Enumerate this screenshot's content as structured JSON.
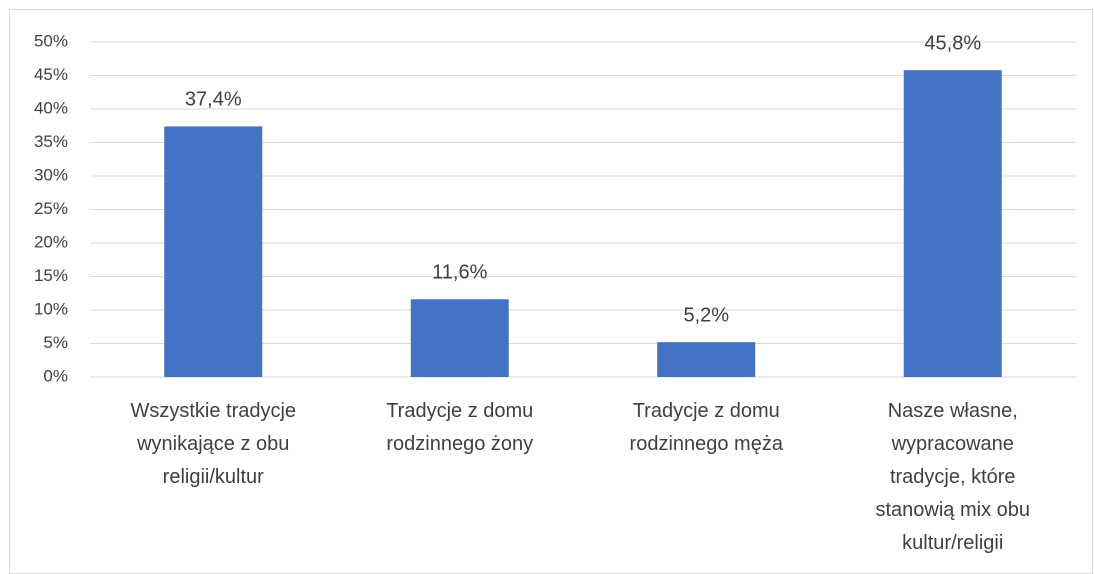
{
  "chart_data": {
    "type": "bar",
    "categories": [
      "Wszystkie tradycje wynikające z obu religii/kultur",
      "Tradycje z domu rodzinnego żony",
      "Tradycje z domu rodzinnego męża",
      "Nasze własne, wypracowane tradycje, które stanowią mix obu kultur/religii"
    ],
    "values": [
      37.4,
      11.6,
      5.2,
      45.8
    ],
    "value_labels": [
      "37,4%",
      "11,6%",
      "5,2%",
      "45,8%"
    ],
    "color": "#4472c4",
    "ylim": [
      0,
      50
    ],
    "yticks": [
      {
        "value": 0,
        "label": "0%"
      },
      {
        "value": 5,
        "label": "5%"
      },
      {
        "value": 10,
        "label": "10%"
      },
      {
        "value": 15,
        "label": "15%"
      },
      {
        "value": 20,
        "label": "20%"
      },
      {
        "value": 25,
        "label": "25%"
      },
      {
        "value": 30,
        "label": "30%"
      },
      {
        "value": 35,
        "label": "35%"
      },
      {
        "value": 40,
        "label": "40%"
      },
      {
        "value": 45,
        "label": "45%"
      },
      {
        "value": 50,
        "label": "50%"
      }
    ],
    "grid": true
  }
}
